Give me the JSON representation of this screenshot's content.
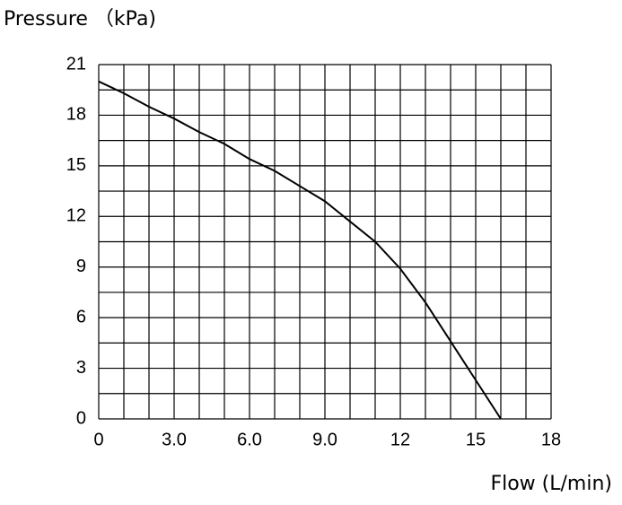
{
  "chart_data": {
    "type": "line",
    "ylabel": "Pressure （kPa)",
    "xlabel": "Flow (L/min)",
    "x": [
      0,
      1,
      2,
      3,
      4,
      5,
      6,
      7,
      8,
      9,
      10,
      11,
      12,
      13,
      14,
      15,
      16
    ],
    "series": [
      {
        "color": "#000000",
        "values": [
          20,
          19.3,
          18.5,
          17.8,
          17.0,
          16.3,
          15.4,
          14.7,
          13.8,
          12.9,
          11.7,
          10.5,
          8.9,
          6.9,
          4.6,
          2.3,
          0
        ]
      }
    ],
    "xlim": [
      0,
      18
    ],
    "ylim": [
      0,
      21
    ],
    "xticks": [
      0,
      {
        "value": 3,
        "label": "3.0"
      },
      {
        "value": 6,
        "label": "6.0"
      },
      {
        "value": 9,
        "label": "9.0"
      },
      12,
      15,
      18
    ],
    "yticks": [
      0,
      3,
      6,
      9,
      12,
      15,
      18,
      21
    ],
    "xgrid": [
      0,
      1,
      2,
      3,
      4,
      5,
      6,
      7,
      8,
      9,
      10,
      11,
      12,
      13,
      14,
      15,
      16,
      17,
      18
    ],
    "ygrid": [
      0,
      1.5,
      3,
      4.5,
      6,
      7.5,
      9,
      10.5,
      12,
      13.5,
      15,
      16.5,
      18,
      19.5,
      21
    ],
    "grid": true
  }
}
